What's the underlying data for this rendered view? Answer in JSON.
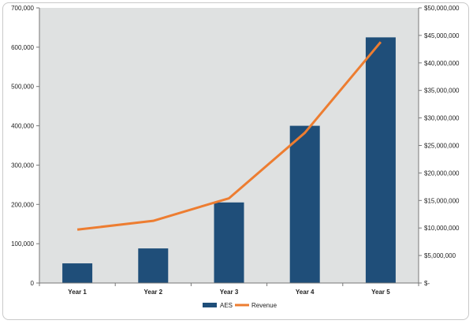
{
  "chart_data": {
    "type": "bar+line",
    "categories": [
      "Year 1",
      "Year 2",
      "Year 3",
      "Year 4",
      "Year 5"
    ],
    "series": [
      {
        "name": "AES",
        "type": "bar",
        "axis": "left",
        "color": "#1f4e79",
        "values": [
          50000,
          88000,
          205000,
          400000,
          625000
        ]
      },
      {
        "name": "Revenue",
        "type": "line",
        "axis": "right",
        "color": "#ed7d31",
        "values": [
          9700000,
          11300000,
          15400000,
          27300000,
          43800000
        ]
      }
    ],
    "y_left": {
      "lim": [
        0,
        700000
      ],
      "ticks": [
        0,
        100000,
        200000,
        300000,
        400000,
        500000,
        600000,
        700000
      ],
      "tick_labels": [
        "0",
        "100,000",
        "200,000",
        "300,000",
        "400,000",
        "500,000",
        "600,000",
        "700,000"
      ]
    },
    "y_right": {
      "lim": [
        0,
        50000000
      ],
      "ticks": [
        0,
        5000000,
        10000000,
        15000000,
        20000000,
        25000000,
        30000000,
        35000000,
        40000000,
        45000000,
        50000000
      ],
      "tick_labels": [
        "$-",
        "$5,000,000",
        "$10,000,000",
        "$15,000,000",
        "$20,000,000",
        "$25,000,000",
        "$30,000,000",
        "$35,000,000",
        "$40,000,000",
        "$45,000,000",
        "$50,000,000"
      ]
    },
    "plot_background": "#dfe1e1",
    "grid": false,
    "legend": {
      "position": "bottom",
      "entries": [
        "AES",
        "Revenue"
      ]
    }
  }
}
